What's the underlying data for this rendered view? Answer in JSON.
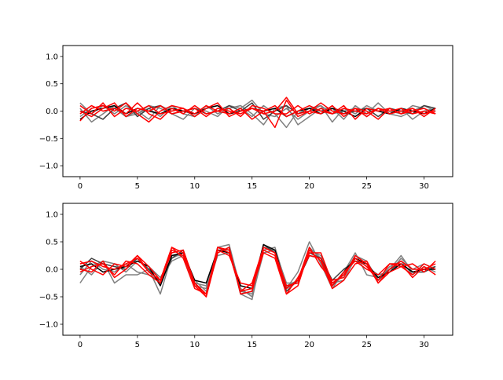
{
  "chart_data": [
    {
      "type": "line",
      "xlim": [
        -1.5,
        32.5
      ],
      "ylim": [
        -1.2,
        1.2
      ],
      "xticks": [
        0,
        5,
        10,
        15,
        20,
        25,
        30
      ],
      "yticks": [
        -1.0,
        -0.5,
        0.0,
        0.5,
        1.0
      ],
      "xtick_labels": [
        "0",
        "5",
        "10",
        "15",
        "20",
        "25",
        "30"
      ],
      "ytick_labels": [
        "−1.0",
        "−0.5",
        "0.0",
        "0.5",
        "1.0"
      ],
      "grid": false,
      "x": [
        0,
        1,
        2,
        3,
        4,
        5,
        6,
        7,
        8,
        9,
        10,
        11,
        12,
        13,
        14,
        15,
        16,
        17,
        18,
        19,
        20,
        21,
        22,
        23,
        24,
        25,
        26,
        27,
        28,
        29,
        30,
        31
      ],
      "series": [
        {
          "color": "#808080",
          "values": [
            0.15,
            -0.05,
            0.1,
            0.05,
            -0.1,
            -0.05,
            0.1,
            0.05,
            -0.05,
            -0.15,
            0.05,
            0.0,
            -0.1,
            0.1,
            0.05,
            0.2,
            -0.05,
            -0.1,
            0.05,
            -0.15,
            0.0,
            0.1,
            -0.05,
            0.0,
            0.05,
            -0.1,
            0.05,
            0.0,
            -0.05,
            0.1,
            0.05,
            -0.05
          ]
        },
        {
          "color": "#808080",
          "values": [
            0.05,
            -0.2,
            -0.05,
            0.1,
            -0.1,
            0.0,
            -0.15,
            0.1,
            0.0,
            0.05,
            -0.1,
            0.05,
            0.1,
            -0.05,
            0.05,
            -0.1,
            0.1,
            -0.05,
            -0.3,
            0.0,
            0.05,
            0.1,
            -0.2,
            0.05,
            -0.05,
            0.1,
            0.0,
            -0.05,
            0.05,
            -0.15,
            0.0,
            0.05
          ]
        },
        {
          "color": "#808080",
          "values": [
            -0.1,
            0.05,
            0.1,
            -0.05,
            0.1,
            -0.05,
            0.05,
            -0.1,
            0.1,
            -0.05,
            -0.1,
            0.1,
            -0.05,
            0.05,
            0.1,
            -0.05,
            -0.25,
            0.05,
            0.1,
            -0.25,
            -0.1,
            0.05,
            0.05,
            -0.15,
            0.1,
            -0.05,
            0.15,
            -0.05,
            -0.1,
            0.0,
            0.1,
            0.0
          ]
        },
        {
          "color": "#404040",
          "values": [
            0.0,
            -0.05,
            -0.15,
            0.05,
            0.15,
            -0.1,
            0.05,
            0.1,
            -0.05,
            0.0,
            0.05,
            -0.05,
            0.0,
            0.1,
            0.0,
            0.15,
            -0.15,
            0.0,
            0.1,
            -0.05,
            0.05,
            0.0,
            0.05,
            -0.05,
            0.0,
            0.05,
            -0.1,
            0.05,
            0.0,
            -0.05,
            0.1,
            0.05
          ]
        },
        {
          "color": "#000000",
          "values": [
            -0.15,
            0.0,
            0.05,
            0.1,
            -0.05,
            0.05,
            0.0,
            -0.05,
            0.05,
            0.0,
            -0.05,
            0.05,
            0.1,
            -0.05,
            0.0,
            0.05,
            0.0,
            0.05,
            -0.1,
            0.0,
            0.05,
            -0.05,
            0.05,
            0.0,
            -0.1,
            0.05,
            0.0,
            -0.05,
            0.05,
            0.0,
            -0.05,
            0.05
          ]
        },
        {
          "color": "#ff0000",
          "values": [
            -0.18,
            0.05,
            0.1,
            0.0,
            0.15,
            -0.05,
            -0.2,
            0.0,
            0.1,
            0.05,
            -0.05,
            0.1,
            0.0,
            -0.05,
            0.05,
            -0.15,
            0.0,
            -0.3,
            0.2,
            -0.1,
            0.0,
            0.15,
            0.0,
            -0.05,
            0.05,
            -0.1,
            0.05,
            -0.05,
            0.0,
            0.05,
            -0.05,
            0.0
          ]
        },
        {
          "color": "#ff0000",
          "values": [
            0.1,
            -0.05,
            0.15,
            -0.1,
            0.05,
            0.0,
            0.1,
            -0.05,
            0.0,
            0.05,
            -0.1,
            0.05,
            0.15,
            -0.1,
            0.0,
            0.05,
            -0.05,
            0.0,
            0.25,
            -0.05,
            0.0,
            -0.05,
            0.1,
            -0.1,
            0.05,
            0.0,
            -0.15,
            0.05,
            -0.05,
            0.0,
            0.05,
            -0.05
          ]
        },
        {
          "color": "#ff0000",
          "values": [
            -0.05,
            0.1,
            0.0,
            0.05,
            -0.05,
            0.15,
            -0.05,
            -0.15,
            0.05,
            -0.05,
            0.1,
            -0.05,
            0.0,
            0.05,
            -0.1,
            0.1,
            0.05,
            -0.05,
            -0.05,
            0.1,
            -0.05,
            0.05,
            -0.05,
            0.1,
            -0.15,
            0.05,
            0.0,
            0.05,
            -0.05,
            0.05,
            -0.1,
            0.05
          ]
        },
        {
          "color": "#ff0000",
          "values": [
            0.0,
            -0.1,
            0.05,
            0.15,
            -0.1,
            0.05,
            0.0,
            0.1,
            -0.05,
            0.0,
            0.05,
            -0.1,
            0.05,
            0.0,
            -0.05,
            0.05,
            0.0,
            0.1,
            -0.1,
            0.0,
            0.1,
            0.0,
            -0.05,
            0.05,
            0.0,
            -0.05,
            0.05,
            0.0,
            0.05,
            -0.05,
            0.0,
            -0.05
          ]
        }
      ]
    },
    {
      "type": "line",
      "xlim": [
        -1.5,
        32.5
      ],
      "ylim": [
        -1.2,
        1.2
      ],
      "xticks": [
        0,
        5,
        10,
        15,
        20,
        25,
        30
      ],
      "yticks": [
        -1.0,
        -0.5,
        0.0,
        0.5,
        1.0
      ],
      "xtick_labels": [
        "0",
        "5",
        "10",
        "15",
        "20",
        "25",
        "30"
      ],
      "ytick_labels": [
        "−1.0",
        "−0.5",
        "0.0",
        "0.5",
        "1.0"
      ],
      "grid": false,
      "x": [
        0,
        1,
        2,
        3,
        4,
        5,
        6,
        7,
        8,
        9,
        10,
        11,
        12,
        13,
        14,
        15,
        16,
        17,
        18,
        19,
        20,
        21,
        22,
        23,
        24,
        25,
        26,
        27,
        28,
        29,
        30,
        31
      ],
      "series": [
        {
          "color": "#808080",
          "values": [
            -0.25,
            0.05,
            0.15,
            -0.25,
            -0.1,
            -0.1,
            0.0,
            -0.45,
            0.25,
            0.25,
            -0.25,
            -0.3,
            0.35,
            0.35,
            -0.45,
            -0.55,
            0.4,
            0.35,
            -0.35,
            -0.05,
            0.5,
            0.1,
            -0.35,
            -0.05,
            0.3,
            -0.1,
            -0.15,
            0.0,
            0.25,
            -0.05,
            0.0,
            0.05
          ]
        },
        {
          "color": "#808080",
          "values": [
            0.05,
            -0.1,
            0.15,
            0.1,
            -0.05,
            0.15,
            0.05,
            -0.15,
            0.2,
            0.3,
            -0.2,
            -0.4,
            0.25,
            0.3,
            -0.4,
            -0.45,
            0.35,
            0.4,
            -0.3,
            -0.2,
            0.4,
            0.2,
            -0.3,
            -0.1,
            0.25,
            0.15,
            -0.2,
            0.05,
            0.15,
            -0.1,
            0.05,
            -0.05
          ]
        },
        {
          "color": "#808080",
          "values": [
            -0.1,
            0.15,
            0.0,
            -0.05,
            0.1,
            -0.05,
            -0.1,
            -0.2,
            0.15,
            0.25,
            -0.3,
            -0.35,
            0.4,
            0.45,
            -0.35,
            -0.5,
            0.3,
            0.35,
            -0.25,
            -0.25,
            0.35,
            0.25,
            -0.25,
            -0.2,
            0.2,
            0.05,
            -0.1,
            -0.05,
            0.2,
            0.0,
            0.1,
            0.0
          ]
        },
        {
          "color": "#404040",
          "values": [
            0.0,
            0.2,
            0.1,
            0.05,
            0.0,
            0.2,
            0.0,
            -0.25,
            0.2,
            0.35,
            -0.25,
            -0.45,
            0.3,
            0.4,
            -0.45,
            -0.4,
            0.45,
            0.3,
            -0.4,
            -0.2,
            0.3,
            0.2,
            -0.2,
            0.0,
            0.15,
            0.1,
            -0.2,
            0.0,
            0.1,
            -0.05,
            -0.05,
            0.05
          ]
        },
        {
          "color": "#000000",
          "values": [
            0.05,
            0.1,
            -0.05,
            0.0,
            0.05,
            0.15,
            0.05,
            -0.3,
            0.25,
            0.3,
            -0.2,
            -0.25,
            0.35,
            0.3,
            -0.3,
            -0.35,
            0.45,
            0.35,
            -0.35,
            -0.2,
            0.25,
            0.2,
            -0.3,
            -0.05,
            0.2,
            0.1,
            -0.15,
            -0.05,
            0.1,
            -0.05,
            0.0,
            0.0
          ]
        },
        {
          "color": "#ff0000",
          "values": [
            0.15,
            0.0,
            -0.1,
            0.1,
            0.05,
            0.25,
            -0.05,
            -0.2,
            0.4,
            0.3,
            -0.3,
            -0.5,
            0.35,
            0.25,
            -0.25,
            -0.3,
            0.35,
            0.25,
            -0.45,
            -0.3,
            0.35,
            0.15,
            -0.35,
            -0.2,
            0.1,
            0.15,
            -0.25,
            -0.05,
            0.05,
            0.1,
            -0.05,
            0.15
          ]
        },
        {
          "color": "#ff0000",
          "values": [
            0.1,
            0.15,
            0.05,
            0.0,
            0.1,
            0.2,
            -0.05,
            -0.2,
            0.4,
            0.2,
            -0.35,
            -0.45,
            0.4,
            0.35,
            -0.4,
            -0.25,
            0.4,
            0.3,
            -0.3,
            -0.25,
            0.3,
            0.3,
            -0.25,
            -0.1,
            0.2,
            0.05,
            -0.2,
            0.1,
            0.05,
            -0.1,
            0.1,
            0.0
          ]
        },
        {
          "color": "#ff0000",
          "values": [
            -0.05,
            0.05,
            0.1,
            -0.1,
            0.15,
            0.1,
            -0.1,
            -0.25,
            0.35,
            0.25,
            -0.25,
            -0.45,
            0.4,
            0.3,
            -0.4,
            -0.35,
            0.3,
            0.2,
            -0.45,
            -0.15,
            0.25,
            0.2,
            -0.3,
            -0.05,
            0.15,
            0.0,
            -0.1,
            0.1,
            0.1,
            -0.15,
            0.05,
            -0.1
          ]
        },
        {
          "color": "#ff0000",
          "values": [
            0.0,
            -0.05,
            0.15,
            -0.15,
            0.0,
            0.25,
            0.05,
            -0.2,
            0.3,
            0.35,
            -0.25,
            -0.5,
            0.3,
            0.4,
            -0.45,
            -0.4,
            0.4,
            0.3,
            -0.35,
            -0.2,
            0.4,
            0.05,
            -0.2,
            -0.15,
            0.25,
            0.1,
            -0.25,
            0.0,
            0.15,
            0.0,
            0.0,
            0.1
          ]
        }
      ]
    }
  ]
}
